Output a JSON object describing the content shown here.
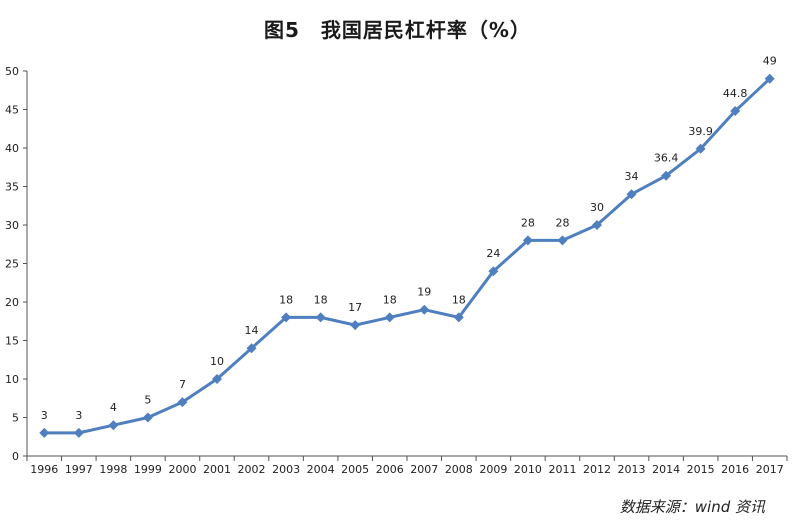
{
  "title": "图5　我国居民杠杆率（%）",
  "source": "数据来源：wind 资讯",
  "colors": {
    "line": "#4f7fbf",
    "axis": "#555555"
  },
  "chart_data": {
    "type": "line",
    "title": "图5　我国居民杠杆率（%）",
    "xlabel": "",
    "ylabel": "",
    "ylim": [
      0,
      50
    ],
    "yticks": [
      0,
      5,
      10,
      15,
      20,
      25,
      30,
      35,
      40,
      45,
      50
    ],
    "grid": false,
    "legend": "none",
    "categories": [
      "1996",
      "1997",
      "1998",
      "1999",
      "2000",
      "2001",
      "2002",
      "2003",
      "2004",
      "2005",
      "2006",
      "2007",
      "2008",
      "2009",
      "2010",
      "2011",
      "2012",
      "2013",
      "2014",
      "2015",
      "2016",
      "2017"
    ],
    "series": [
      {
        "values": [
          3,
          3,
          4,
          5,
          7,
          10,
          14,
          18,
          18,
          17,
          18,
          19,
          18,
          24,
          28,
          28,
          30,
          34,
          36.4,
          39.9,
          44.8,
          49
        ],
        "labels": [
          "3",
          "3",
          "4",
          "5",
          "7",
          "10",
          "14",
          "18",
          "18",
          "17",
          "18",
          "19",
          "18",
          "24",
          "28",
          "28",
          "30",
          "34",
          "36.4",
          "39.9",
          "44.8",
          "49"
        ]
      }
    ]
  }
}
